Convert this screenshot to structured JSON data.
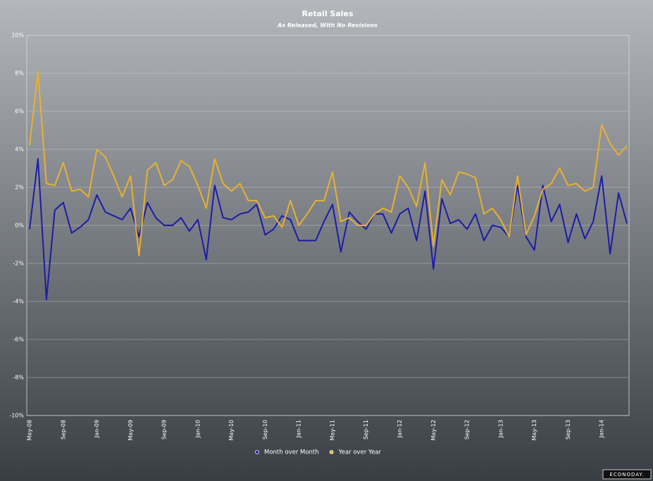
{
  "chart_data": {
    "type": "line",
    "title": "Retail Sales",
    "subtitle": "As Released, With No Revisions",
    "watermark": "ECONODAY.",
    "categories": [
      "May-08",
      null,
      null,
      null,
      "Sep-08",
      null,
      null,
      null,
      "Jan-09",
      null,
      null,
      null,
      "May-09",
      null,
      null,
      null,
      "Sep-09",
      null,
      null,
      null,
      "Jan-10",
      null,
      null,
      null,
      "May-10",
      null,
      null,
      null,
      "Sep-10",
      null,
      null,
      null,
      "Jan-11",
      null,
      null,
      null,
      "May-11",
      null,
      null,
      null,
      "Sep-11",
      null,
      null,
      null,
      "Jan-12",
      null,
      null,
      null,
      "May-12",
      null,
      null,
      null,
      "Sep-12",
      null,
      null,
      null,
      "Jan-13",
      null,
      null,
      null,
      "May-13",
      null,
      null,
      null,
      "Sep-13",
      null,
      null,
      null,
      "Jan-14",
      null,
      null,
      null
    ],
    "series": [
      {
        "name": "Month over Month",
        "color": "#1c1ca8",
        "values": [
          -0.2,
          3.5,
          -3.9,
          0.8,
          1.2,
          -0.4,
          -0.1,
          0.3,
          1.6,
          0.7,
          0.5,
          0.3,
          0.9,
          -0.6,
          1.2,
          0.4,
          0.0,
          0.0,
          0.4,
          -0.3,
          0.3,
          -1.8,
          2.1,
          0.4,
          0.3,
          0.6,
          0.7,
          1.1,
          -0.5,
          -0.2,
          0.5,
          0.3,
          -0.8,
          -0.8,
          -0.8,
          0.2,
          1.1,
          -1.4,
          0.7,
          0.2,
          -0.2,
          0.6,
          0.6,
          -0.4,
          0.6,
          0.9,
          -0.8,
          1.8,
          -2.3,
          1.4,
          0.1,
          0.3,
          -0.2,
          0.6,
          -0.8,
          0.0,
          -0.1,
          -0.6,
          2.1,
          -0.6,
          -1.3,
          2.1,
          0.2,
          1.1,
          -0.9,
          0.6,
          -0.7,
          0.2,
          2.6,
          -1.5,
          1.7,
          0.1
        ]
      },
      {
        "name": "Year over Year",
        "color": "#e8b030",
        "values": [
          4.2,
          8.1,
          2.2,
          2.1,
          3.3,
          1.8,
          1.9,
          1.5,
          4.0,
          3.6,
          2.6,
          1.5,
          2.6,
          -1.6,
          2.9,
          3.3,
          2.1,
          2.4,
          3.4,
          3.1,
          2.1,
          0.9,
          3.5,
          2.2,
          1.8,
          2.2,
          1.3,
          1.3,
          0.4,
          0.5,
          -0.1,
          1.3,
          0.0,
          0.6,
          1.3,
          1.3,
          2.8,
          0.2,
          0.4,
          0.0,
          0.0,
          0.6,
          0.9,
          0.7,
          2.6,
          2.0,
          1.0,
          3.3,
          -1.1,
          2.4,
          1.6,
          2.8,
          2.7,
          2.5,
          0.6,
          0.9,
          0.3,
          -0.6,
          2.6,
          -0.5,
          0.5,
          1.9,
          2.2,
          3.0,
          2.1,
          2.2,
          1.8,
          2.0,
          5.3,
          4.3,
          3.7,
          4.2
        ]
      }
    ],
    "ylim": [
      -10,
      10
    ],
    "yticks": [
      {
        "value": -10,
        "label": "-10%"
      },
      {
        "value": -8,
        "label": "-8%"
      },
      {
        "value": -6,
        "label": "-6%"
      },
      {
        "value": -4,
        "label": "-4%"
      },
      {
        "value": -2,
        "label": "-2%"
      },
      {
        "value": 0,
        "label": "0%"
      },
      {
        "value": 2,
        "label": "2%"
      },
      {
        "value": 4,
        "label": "4%"
      },
      {
        "value": 6,
        "label": "6%"
      },
      {
        "value": 8,
        "label": "8%"
      },
      {
        "value": 10,
        "label": "10%"
      }
    ],
    "grid": true,
    "legend": "bottom"
  }
}
